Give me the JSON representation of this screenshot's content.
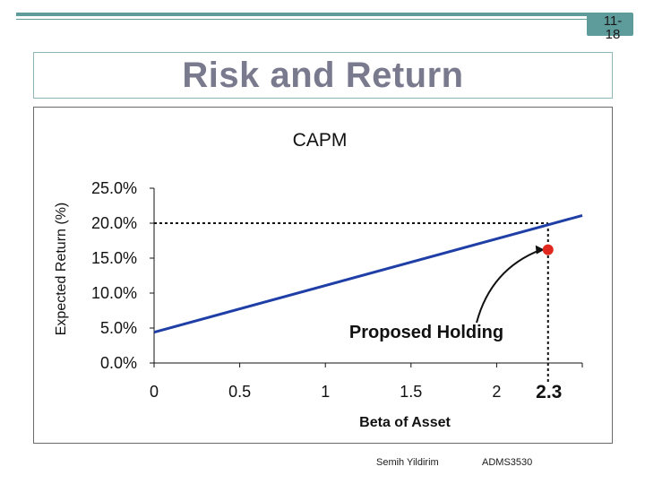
{
  "slide": {
    "number": "11-\n18",
    "title": "Risk and Return",
    "footer_author": "Semih Yildirim",
    "footer_course": "ADMS3530"
  },
  "colors": {
    "accent": "#5e9b9b",
    "line": "#1f3fa6",
    "point": "#e0281e",
    "title": "#7a7a8e"
  },
  "chart_data": {
    "type": "line",
    "title": "CAPM",
    "xlabel": "Beta of Asset",
    "ylabel": "Expected Return (%)",
    "xlim": [
      0,
      2.5
    ],
    "ylim": [
      0,
      25
    ],
    "x_ticks": [
      0,
      0.5,
      1,
      1.5,
      2
    ],
    "x_tick_labels": [
      "0",
      "0.5",
      "1",
      "1.5",
      "2"
    ],
    "y_ticks": [
      0,
      5,
      10,
      15,
      20,
      25
    ],
    "y_tick_labels": [
      "0.0%",
      "5.0%",
      "10.0%",
      "15.0%",
      "20.0%",
      "25.0%"
    ],
    "series": [
      {
        "values": [
          [
            0,
            4.4
          ],
          [
            2.5,
            21.1
          ]
        ]
      }
    ],
    "reference_lines": [
      {
        "x": 2.3,
        "y": 20.0
      }
    ],
    "points": [
      {
        "x": 2.3,
        "y": 16.2,
        "label": "Proposed Holding"
      }
    ],
    "annotations": [
      {
        "text": "2.3",
        "x": 2.3
      }
    ]
  }
}
